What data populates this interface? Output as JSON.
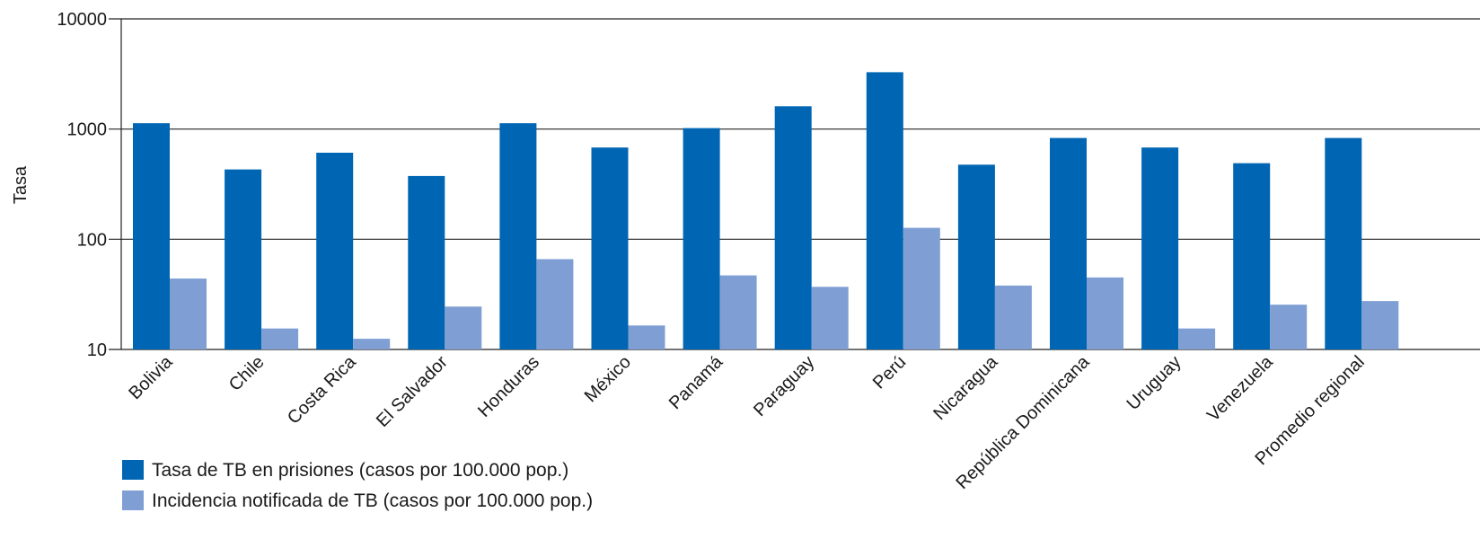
{
  "chart_data": {
    "type": "bar",
    "scale": "log",
    "ylabel": "Tasa",
    "ylim": [
      10,
      10000
    ],
    "yticks": [
      "10",
      "100",
      "1000",
      "10000"
    ],
    "grid": true,
    "legend_position": "bottom-left",
    "categories": [
      "Bolivia",
      "Chile",
      "Costa Rica",
      "El Salvador",
      "Honduras",
      "México",
      "Panamá",
      "Paraguay",
      "Perú",
      "Nicaragua",
      "República Dominicana",
      "Uruguay",
      "Venezuela",
      "Promedio regional"
    ],
    "series": [
      {
        "name": "Tasa de TB en prisiones (casos por 100.000 pop.)",
        "color": "#0066b3",
        "values": [
          1130,
          430,
          610,
          375,
          1130,
          680,
          1020,
          1610,
          3280,
          475,
          830,
          680,
          490,
          830
        ]
      },
      {
        "name": "Incidencia notificada de TB (casos por 100.000 pop.)",
        "color": "#7f9fd4",
        "values": [
          44,
          15.5,
          12.5,
          24.5,
          66,
          16.5,
          47,
          37,
          127,
          38,
          45,
          15.5,
          25.5,
          27.5
        ]
      }
    ]
  }
}
